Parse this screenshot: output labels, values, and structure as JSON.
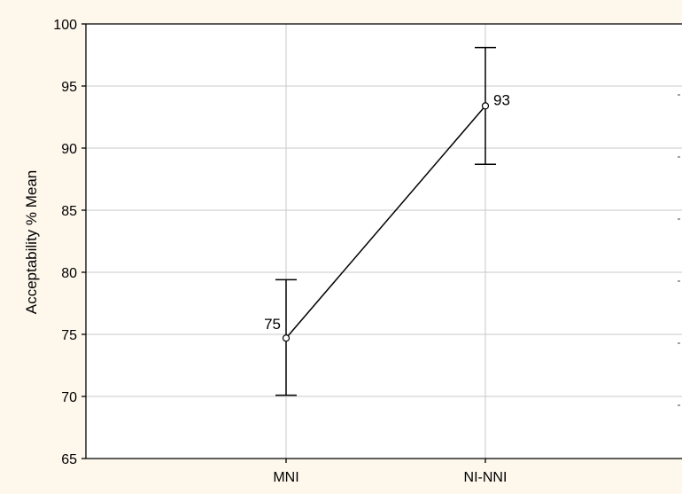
{
  "chart_data": {
    "type": "line",
    "title": "",
    "xlabel": "",
    "ylabel": "Acceptability % Mean",
    "categories": [
      "MNI",
      "NI-NNI"
    ],
    "values": [
      74.7,
      93.4
    ],
    "error_low": [
      70.1,
      88.7
    ],
    "error_high": [
      79.4,
      98.1
    ],
    "data_labels": [
      "75",
      "93"
    ],
    "ylim": [
      65,
      100
    ],
    "yticks": [
      65,
      70,
      75,
      80,
      85,
      90,
      95,
      100
    ],
    "grid": true,
    "legend": "none",
    "colors": {
      "background": "#fdf7ec",
      "plot_background": "#ffffff",
      "grid": "#c8c8c8",
      "line": "#000000"
    }
  }
}
